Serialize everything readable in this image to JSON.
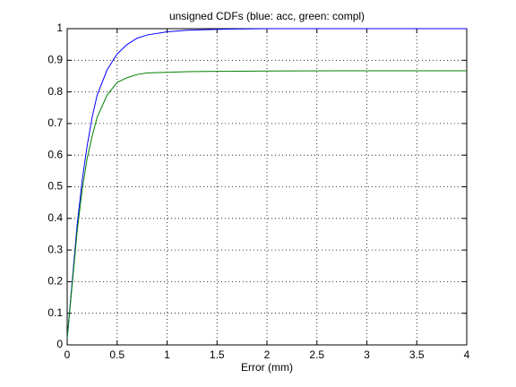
{
  "chart_data": {
    "type": "line",
    "title": "unsigned CDFs (blue: acc, green: compl)",
    "xlabel": "Error (mm)",
    "x": [
      0,
      0.05,
      0.1,
      0.15,
      0.2,
      0.25,
      0.3,
      0.4,
      0.5,
      0.6,
      0.7,
      0.8,
      1,
      1.2,
      1.5,
      2,
      3,
      4
    ],
    "series": [
      {
        "color": "#0000ff",
        "values": [
          0.02,
          0.2,
          0.38,
          0.52,
          0.63,
          0.72,
          0.79,
          0.87,
          0.92,
          0.95,
          0.97,
          0.98,
          0.99,
          0.995,
          0.998,
          1,
          1,
          1
        ]
      },
      {
        "color": "#008000",
        "values": [
          0.02,
          0.19,
          0.36,
          0.49,
          0.59,
          0.66,
          0.72,
          0.79,
          0.83,
          0.845,
          0.855,
          0.86,
          0.862,
          0.864,
          0.865,
          0.866,
          0.867,
          0.867
        ]
      }
    ],
    "xlim": [
      0,
      4
    ],
    "ylim": [
      0,
      1
    ],
    "xticks": [
      0,
      0.5,
      1,
      1.5,
      2,
      2.5,
      3,
      3.5,
      4
    ],
    "yticks": [
      0,
      0.1,
      0.2,
      0.3,
      0.4,
      0.5,
      0.6,
      0.7,
      0.8,
      0.9,
      1
    ],
    "grid": true
  }
}
